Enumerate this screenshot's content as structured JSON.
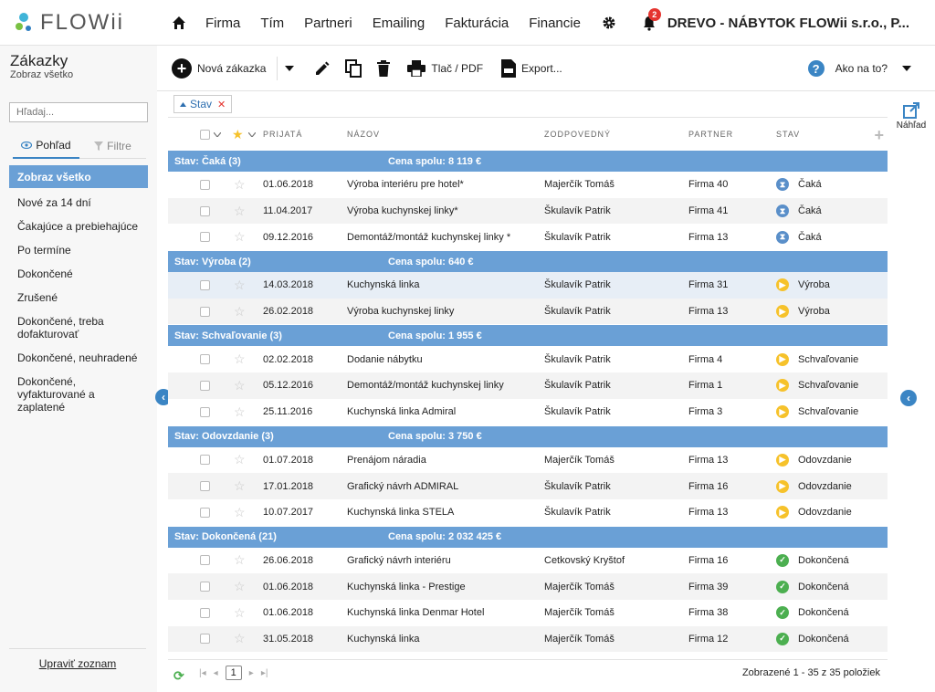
{
  "app": {
    "logo_text": "FLOWii",
    "nav": [
      "Firma",
      "Tím",
      "Partneri",
      "Emailing",
      "Fakturácia",
      "Financie"
    ],
    "notifications_count": "2",
    "company_name": "DREVO - NÁBYTOK FLOWii s.r.o., P..."
  },
  "page": {
    "title": "Zákazky",
    "subtitle": "Zobraz všetko"
  },
  "toolbar": {
    "new_label": "Nová zákazka",
    "print_label": "Tlač / PDF",
    "export_label": "Export...",
    "help_label": "Ako na to?"
  },
  "sidebar": {
    "search_placeholder": "Hľadaj...",
    "tab_view": "Pohľad",
    "tab_filters": "Filtre",
    "items": [
      "Zobraz všetko",
      "Nové za 14 dní",
      "Čakajúce a prebiehajúce",
      "Po termíne",
      "Dokončené",
      "Zrušené",
      "Dokončené, treba dofakturovať",
      "Dokončené, neuhradené",
      "Dokončené, vyfakturované a zaplatené"
    ],
    "edit_list": "Upraviť zoznam"
  },
  "filter_chip": "Stav",
  "table": {
    "columns": [
      "PRIJATÁ",
      "NÁZOV",
      "ZODPOVEDNÝ",
      "PARTNER",
      "STAV"
    ],
    "groups": [
      {
        "label": "Stav: Čaká (3)",
        "sum": "Cena spolu: 8 119 €",
        "rows": [
          {
            "date": "01.06.2018",
            "name": "Výroba interiéru pre hotel*",
            "owner": "Majerčík Tomáš",
            "partner": "Firma 40",
            "status": "Čaká",
            "icon": "wait"
          },
          {
            "date": "11.04.2017",
            "name": "Výroba kuchynskej linky*",
            "owner": "Škulavík Patrik",
            "partner": "Firma 41",
            "status": "Čaká",
            "icon": "wait"
          },
          {
            "date": "09.12.2016",
            "name": "Demontáž/montáž kuchynskej linky *",
            "owner": "Škulavík Patrik",
            "partner": "Firma 13",
            "status": "Čaká",
            "icon": "wait"
          }
        ]
      },
      {
        "label": "Stav: Výroba (2)",
        "sum": "Cena spolu: 640 €",
        "rows": [
          {
            "date": "14.03.2018",
            "name": "Kuchynská linka",
            "owner": "Škulavík Patrik",
            "partner": "Firma 31",
            "status": "Výroba",
            "icon": "play"
          },
          {
            "date": "26.02.2018",
            "name": "Výroba kuchynskej linky",
            "owner": "Škulavík Patrik",
            "partner": "Firma 13",
            "status": "Výroba",
            "icon": "play"
          }
        ]
      },
      {
        "label": "Stav: Schvaľovanie (3)",
        "sum": "Cena spolu: 1 955 €",
        "rows": [
          {
            "date": "02.02.2018",
            "name": "Dodanie nábytku",
            "owner": "Škulavík Patrik",
            "partner": "Firma 4",
            "status": "Schvaľovanie",
            "icon": "play"
          },
          {
            "date": "05.12.2016",
            "name": "Demontáž/montáž kuchynskej linky",
            "owner": "Škulavík Patrik",
            "partner": "Firma 1",
            "status": "Schvaľovanie",
            "icon": "play"
          },
          {
            "date": "25.11.2016",
            "name": "Kuchynská linka Admiral",
            "owner": "Škulavík Patrik",
            "partner": "Firma 3",
            "status": "Schvaľovanie",
            "icon": "play"
          }
        ]
      },
      {
        "label": "Stav: Odovzdanie (3)",
        "sum": "Cena spolu: 3 750 €",
        "rows": [
          {
            "date": "01.07.2018",
            "name": "Prenájom náradia",
            "owner": "Majerčík Tomáš",
            "partner": "Firma 13",
            "status": "Odovzdanie",
            "icon": "play"
          },
          {
            "date": "17.01.2018",
            "name": "Grafický návrh ADMIRAL",
            "owner": "Škulavík Patrik",
            "partner": "Firma 16",
            "status": "Odovzdanie",
            "icon": "play"
          },
          {
            "date": "10.07.2017",
            "name": "Kuchynská linka STELA",
            "owner": "Škulavík Patrik",
            "partner": "Firma 13",
            "status": "Odovzdanie",
            "icon": "play"
          }
        ]
      },
      {
        "label": "Stav: Dokončená (21)",
        "sum": "Cena spolu: 2 032 425 €",
        "rows": [
          {
            "date": "26.06.2018",
            "name": "Grafický návrh interiéru",
            "owner": "Cetkovský Kryštof",
            "partner": "Firma 16",
            "status": "Dokončená",
            "icon": "done"
          },
          {
            "date": "01.06.2018",
            "name": "Kuchynská linka - Prestige",
            "owner": "Majerčík Tomáš",
            "partner": "Firma 39",
            "status": "Dokončená",
            "icon": "done"
          },
          {
            "date": "01.06.2018",
            "name": "Kuchynská linka Denmar Hotel",
            "owner": "Majerčík Tomáš",
            "partner": "Firma 38",
            "status": "Dokončená",
            "icon": "done"
          },
          {
            "date": "31.05.2018",
            "name": "Kuchynská linka",
            "owner": "Majerčík Tomáš",
            "partner": "Firma 12",
            "status": "Dokončená",
            "icon": "done"
          }
        ]
      }
    ]
  },
  "footer": {
    "page": "1",
    "summary": "Zobrazené 1 - 35 z 35 položiek"
  },
  "preview_label": "Náhľad",
  "colors": {
    "accent": "#3b85c4",
    "group_bar": "#6aa0d6",
    "status_wait": "#5a8fc9",
    "status_progress": "#f6c22b",
    "status_done": "#4caf50"
  }
}
